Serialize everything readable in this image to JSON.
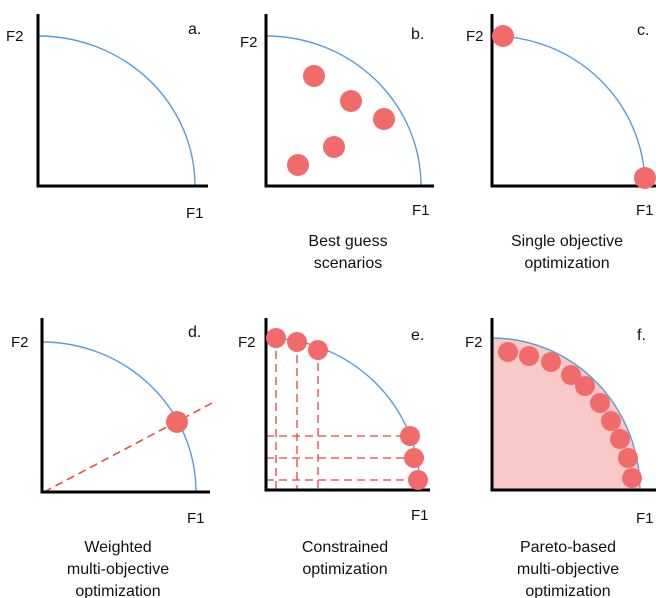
{
  "colors": {
    "axis": "#000000",
    "front": "#5b9bd5",
    "point": "#f26b6b",
    "dashed": "#e8443a",
    "feasible_fill": "#f9c9c9"
  },
  "panels": [
    {
      "letter": "a.",
      "x_axis": "F1",
      "y_axis": "F2",
      "caption": [],
      "method": "front-only"
    },
    {
      "letter": "b.",
      "x_axis": "F1",
      "y_axis": "F2",
      "caption": [
        "Best guess",
        "scenarios"
      ],
      "method": "best-guess"
    },
    {
      "letter": "c.",
      "x_axis": "F1",
      "y_axis": "F2",
      "caption": [
        "Single objective",
        "optimization"
      ],
      "method": "single-objective"
    },
    {
      "letter": "d.",
      "x_axis": "F1",
      "y_axis": "F2",
      "caption": [
        "Weighted",
        "multi-objective",
        "optimization"
      ],
      "method": "weighted"
    },
    {
      "letter": "e.",
      "x_axis": "F1",
      "y_axis": "F2",
      "caption": [
        "Constrained",
        "optimization"
      ],
      "method": "constrained"
    },
    {
      "letter": "f.",
      "x_axis": "F1",
      "y_axis": "F2",
      "caption": [
        "Pareto-based",
        "multi-objective",
        "optimization"
      ],
      "method": "pareto"
    }
  ]
}
